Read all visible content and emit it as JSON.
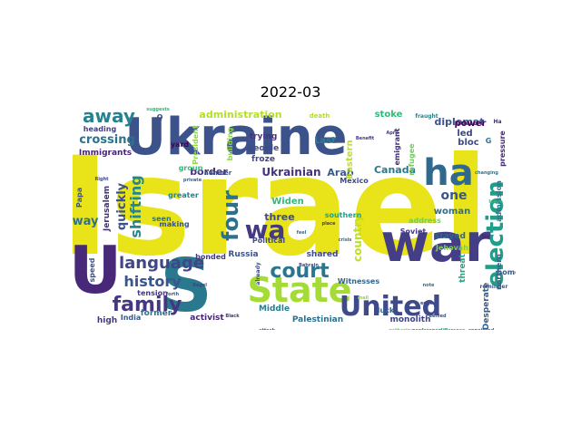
{
  "title": "2022-03",
  "words": [
    {
      "text": "Israel",
      "color": "#e8e419"
    },
    {
      "text": "Ukraine",
      "color": "#3b528b"
    },
    {
      "text": "war",
      "color": "#433e85"
    },
    {
      "text": "State",
      "color": "#a5db36"
    },
    {
      "text": "United",
      "color": "#3e4a89"
    },
    {
      "text": "U",
      "color": "#482878"
    },
    {
      "text": "S",
      "color": "#2a788e"
    },
    {
      "text": "election",
      "color": "#1f9e89"
    },
    {
      "text": "ha",
      "color": "#31688e"
    },
    {
      "text": "wa",
      "color": "#443983"
    },
    {
      "text": "four",
      "color": "#2c728e"
    },
    {
      "text": "court",
      "color": "#2a768e"
    },
    {
      "text": "family",
      "color": "#453781"
    },
    {
      "text": "language",
      "color": "#404688"
    },
    {
      "text": "history",
      "color": "#3a548c"
    },
    {
      "text": "away",
      "color": "#26828e"
    },
    {
      "text": "shifting",
      "color": "#24868e"
    },
    {
      "text": "quickly",
      "color": "#3b528b"
    },
    {
      "text": "one",
      "color": "#39568c"
    },
    {
      "text": "crossing",
      "color": "#2c728e"
    },
    {
      "text": "border",
      "color": "#472f7d"
    },
    {
      "text": "Ukrainian",
      "color": "#46327e"
    },
    {
      "text": "Arab",
      "color": "#38598c"
    },
    {
      "text": "Canada",
      "color": "#2a788e"
    },
    {
      "text": "administration",
      "color": "#b5de2b"
    },
    {
      "text": "diplomat",
      "color": "#3b528b"
    },
    {
      "text": "way",
      "color": "#2c728e"
    },
    {
      "text": "country",
      "color": "#bddf26"
    },
    {
      "text": "Widen",
      "color": "#35b779"
    },
    {
      "text": "three",
      "color": "#3e4a89"
    },
    {
      "text": "woman",
      "color": "#2e6e8e"
    },
    {
      "text": "Last",
      "color": "#25848e"
    },
    {
      "text": "Eastern",
      "color": "#bddf26"
    },
    {
      "text": "stoke",
      "color": "#35b779"
    },
    {
      "text": "power",
      "color": "#440154"
    },
    {
      "text": "led",
      "color": "#414487"
    },
    {
      "text": "bloc",
      "color": "#3e4a89"
    },
    {
      "text": "Jerusalem",
      "color": "#46327e"
    },
    {
      "text": "Immigrants",
      "color": "#482475"
    },
    {
      "text": "heading",
      "color": "#433e85"
    },
    {
      "text": "Papa",
      "color": "#3b528b"
    },
    {
      "text": "tension",
      "color": "#453781"
    },
    {
      "text": "Middle",
      "color": "#287c8e"
    },
    {
      "text": "Palestinian",
      "color": "#2d708e"
    },
    {
      "text": "monolith",
      "color": "#414487"
    },
    {
      "text": "activist",
      "color": "#482475"
    },
    {
      "text": "former",
      "color": "#2c728e"
    },
    {
      "text": "high",
      "color": "#443983"
    },
    {
      "text": "India",
      "color": "#38598c"
    },
    {
      "text": "Russia",
      "color": "#3b528b"
    },
    {
      "text": "bonded",
      "color": "#443983"
    },
    {
      "text": "shared",
      "color": "#3e4a89"
    },
    {
      "text": "Witnesses",
      "color": "#33638d"
    },
    {
      "text": "luck",
      "color": "#31688e"
    },
    {
      "text": "threat",
      "color": "#22a884"
    },
    {
      "text": "home",
      "color": "#39568c"
    },
    {
      "text": "Desperate",
      "color": "#355f8d"
    },
    {
      "text": "stayed",
      "color": "#33638d"
    },
    {
      "text": "Jehovah",
      "color": "#7ad151"
    },
    {
      "text": "Soviet",
      "color": "#453781"
    },
    {
      "text": "southern",
      "color": "#1fa188"
    },
    {
      "text": "Mexico",
      "color": "#3e4a89"
    },
    {
      "text": "greater",
      "color": "#25848e"
    },
    {
      "text": "making",
      "color": "#3b528b"
    },
    {
      "text": "seen",
      "color": "#2c728e"
    },
    {
      "text": "people",
      "color": "#3e4a89"
    },
    {
      "text": "froze",
      "color": "#404688"
    },
    {
      "text": "trying",
      "color": "#46327e"
    },
    {
      "text": "building",
      "color": "#8fd744"
    },
    {
      "text": "President",
      "color": "#8fd744"
    },
    {
      "text": "yard",
      "color": "#440154"
    },
    {
      "text": "Political",
      "color": "#3e4a89"
    },
    {
      "text": "emigrant",
      "color": "#46327e"
    },
    {
      "text": "refugee",
      "color": "#6ece58"
    },
    {
      "text": "address",
      "color": "#6ece58"
    },
    {
      "text": "northern",
      "color": "#33638d"
    },
    {
      "text": "admission",
      "color": "#2a788e"
    },
    {
      "text": "pressure",
      "color": "#472d7b"
    },
    {
      "text": "speed",
      "color": "#3b528b"
    },
    {
      "text": "number",
      "color": "#39568c"
    },
    {
      "text": "group",
      "color": "#35b779"
    },
    {
      "text": "death",
      "color": "#b5de2b"
    },
    {
      "text": "fraught",
      "color": "#25848e"
    },
    {
      "text": "Q",
      "color": "#3e4a89"
    },
    {
      "text": "G",
      "color": "#2c728e"
    },
    {
      "text": "Ha",
      "color": "#472d7b"
    },
    {
      "text": "Ne",
      "color": "#482878"
    },
    {
      "text": "already",
      "color": "#3b528b"
    },
    {
      "text": "reminder",
      "color": "#39568c"
    },
    {
      "text": "Bahrain",
      "color": "#3e4a89"
    },
    {
      "text": "Black",
      "color": "#46327e"
    },
    {
      "text": "Benefit",
      "color": "#443983"
    },
    {
      "text": "April",
      "color": "#453781"
    },
    {
      "text": "crisis",
      "color": "#31688e"
    },
    {
      "text": "Supreme",
      "color": "#3b528b"
    },
    {
      "text": "suggests",
      "color": "#35b779"
    },
    {
      "text": "gathering",
      "color": "#6ece58"
    },
    {
      "text": "conference",
      "color": "#21918c"
    },
    {
      "text": "difference",
      "color": "#22a884"
    },
    {
      "text": "appointed",
      "color": "#2c728e"
    },
    {
      "text": "place",
      "color": "#443983"
    },
    {
      "text": "note",
      "color": "#2c728e"
    },
    {
      "text": "edge",
      "color": "#3e4a89"
    },
    {
      "text": "denied",
      "color": "#39568c"
    },
    {
      "text": "Right",
      "color": "#404688"
    },
    {
      "text": "attack",
      "color": "#3b528b"
    },
    {
      "text": "Bagel",
      "color": "#414487"
    },
    {
      "text": "changing",
      "color": "#2a788e"
    },
    {
      "text": "private",
      "color": "#33638d"
    },
    {
      "text": "mail",
      "color": "#8fd744"
    },
    {
      "text": "feel",
      "color": "#2c728e"
    },
    {
      "text": "forth",
      "color": "#38598c"
    },
    {
      "text": "leave",
      "color": "#35b779"
    }
  ]
}
